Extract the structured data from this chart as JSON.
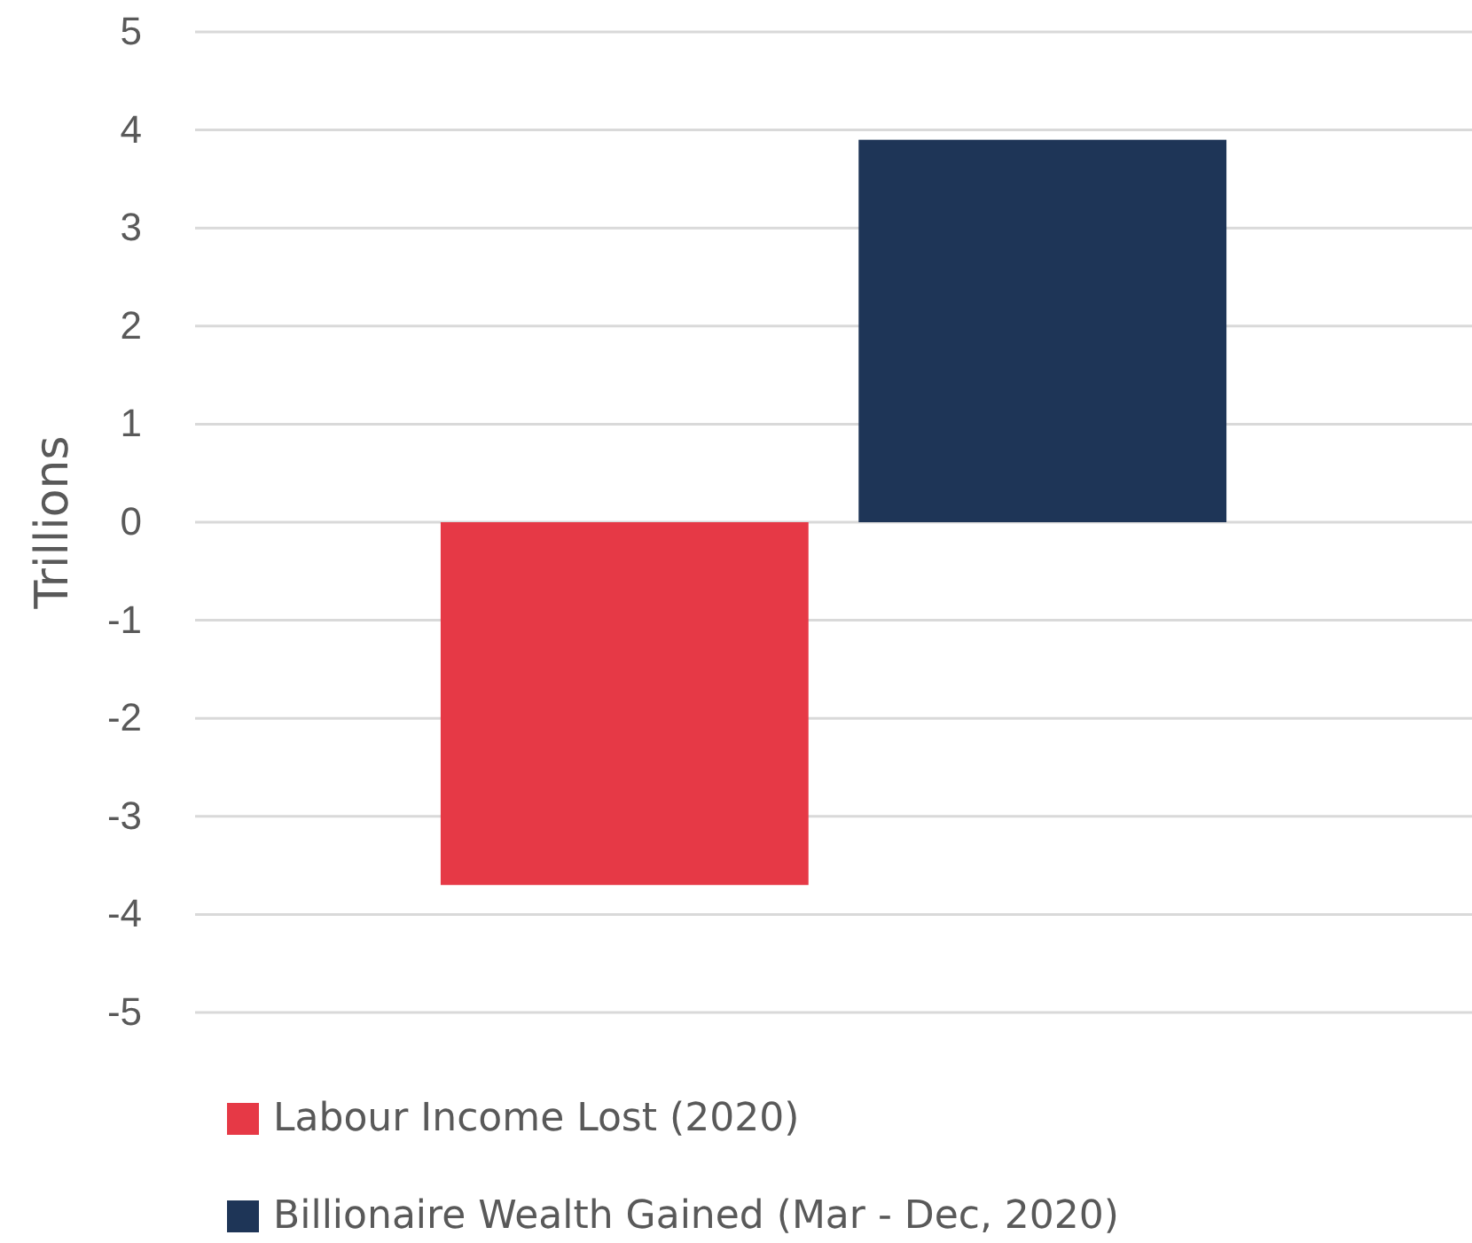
{
  "chart_data": {
    "type": "bar",
    "ylabel": "Trillions",
    "categories": [
      null
    ],
    "series": [
      {
        "name": "Labour Income Lost (2020)",
        "color": "#e63946",
        "values": [
          -3.7
        ]
      },
      {
        "name": "Billionaire Wealth Gained (Mar - Dec, 2020)",
        "color": "#1e3557",
        "values": [
          3.9
        ]
      }
    ],
    "ylim": [
      -5,
      5
    ],
    "yticks": [
      -5,
      -4,
      -3,
      -2,
      -1,
      0,
      1,
      2,
      3,
      4,
      5
    ],
    "grid": "y",
    "legend": "bottom"
  }
}
